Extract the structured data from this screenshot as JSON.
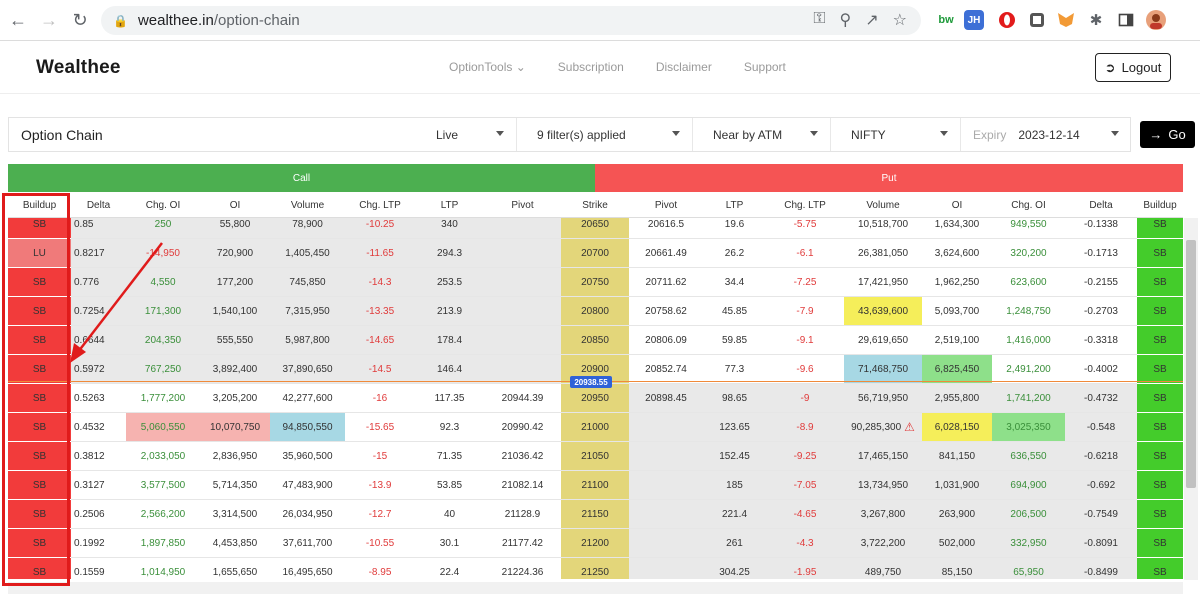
{
  "browser": {
    "url_domain": "wealthee.in",
    "url_path": "/option-chain",
    "extensions": [
      "bw",
      "JH"
    ]
  },
  "site": {
    "logo": "Wealthee",
    "menu": [
      "OptionTools",
      "Subscription",
      "Disclaimer",
      "Support"
    ],
    "logout": "Logout"
  },
  "filters": {
    "title": "Option Chain",
    "mode": "Live",
    "filters_applied": "9 filter(s) applied",
    "range": "Near by ATM",
    "symbol": "NIFTY",
    "expiry_label": "Expiry",
    "expiry": "2023-12-14",
    "go": "Go"
  },
  "table": {
    "call_label": "Call",
    "put_label": "Put",
    "spot_marker": "20938.55",
    "headers": [
      "Buildup",
      "Delta",
      "Chg. OI",
      "OI",
      "Volume",
      "Chg. LTP",
      "LTP",
      "Pivot",
      "Strike",
      "Pivot",
      "LTP",
      "Chg. LTP",
      "Volume",
      "OI",
      "Chg. OI",
      "Delta",
      "Buildup"
    ],
    "rows": [
      [
        "SB",
        "0.85",
        "250",
        "55,800",
        "78,900",
        "-10.25",
        "340",
        "",
        "20650",
        "20616.5",
        "19.6",
        "-5.75",
        "10,518,700",
        "1,634,300",
        "949,550",
        "-0.1338",
        "SB"
      ],
      [
        "LU",
        "0.8217",
        "-14,950",
        "720,900",
        "1,405,450",
        "-11.65",
        "294.3",
        "",
        "20700",
        "20661.49",
        "26.2",
        "-6.1",
        "26,381,050",
        "3,624,600",
        "320,200",
        "-0.1713",
        "SB"
      ],
      [
        "SB",
        "0.776",
        "4,550",
        "177,200",
        "745,850",
        "-14.3",
        "253.5",
        "",
        "20750",
        "20711.62",
        "34.4",
        "-7.25",
        "17,421,950",
        "1,962,250",
        "623,600",
        "-0.2155",
        "SB"
      ],
      [
        "SB",
        "0.7254",
        "171,300",
        "1,540,100",
        "7,315,950",
        "-13.35",
        "213.9",
        "",
        "20800",
        "20758.62",
        "45.85",
        "-7.9",
        "43,639,600",
        "5,093,700",
        "1,248,750",
        "-0.2703",
        "SB"
      ],
      [
        "SB",
        "0.6644",
        "204,350",
        "555,550",
        "5,987,800",
        "-14.65",
        "178.4",
        "",
        "20850",
        "20806.09",
        "59.85",
        "-9.1",
        "29,619,650",
        "2,519,100",
        "1,416,000",
        "-0.3318",
        "SB"
      ],
      [
        "SB",
        "0.5972",
        "767,250",
        "3,892,400",
        "37,890,650",
        "-14.5",
        "146.4",
        "",
        "20900",
        "20852.74",
        "77.3",
        "-9.6",
        "71,468,750",
        "6,825,450",
        "2,491,200",
        "-0.4002",
        "SB"
      ],
      [
        "SB",
        "0.5263",
        "1,777,200",
        "3,205,200",
        "42,277,600",
        "-16",
        "117.35",
        "20944.39",
        "20950",
        "20898.45",
        "98.65",
        "-9",
        "56,719,950",
        "2,955,800",
        "1,741,200",
        "-0.4732",
        "SB"
      ],
      [
        "SB",
        "0.4532",
        "5,060,550",
        "10,070,750",
        "94,850,550",
        "-15.65",
        "92.3",
        "20990.42",
        "21000",
        "",
        "123.65",
        "-8.9",
        "90,285,300",
        "6,028,150",
        "3,025,350",
        "-0.548",
        "SB"
      ],
      [
        "SB",
        "0.3812",
        "2,033,050",
        "2,836,950",
        "35,960,500",
        "-15",
        "71.35",
        "21036.42",
        "21050",
        "",
        "152.45",
        "-9.25",
        "17,465,150",
        "841,150",
        "636,550",
        "-0.6218",
        "SB"
      ],
      [
        "SB",
        "0.3127",
        "3,577,500",
        "5,714,350",
        "47,483,900",
        "-13.9",
        "53.85",
        "21082.14",
        "21100",
        "",
        "185",
        "-7.05",
        "13,734,950",
        "1,031,900",
        "694,900",
        "-0.692",
        "SB"
      ],
      [
        "SB",
        "0.2506",
        "2,566,200",
        "3,314,500",
        "26,034,950",
        "-12.7",
        "40",
        "21128.9",
        "21150",
        "",
        "221.4",
        "-4.65",
        "3,267,800",
        "263,900",
        "206,500",
        "-0.7549",
        "SB"
      ],
      [
        "SB",
        "0.1992",
        "1,897,850",
        "4,453,850",
        "37,611,700",
        "-10.55",
        "30.1",
        "21177.42",
        "21200",
        "",
        "261",
        "-4.3",
        "3,722,200",
        "502,000",
        "332,950",
        "-0.8091",
        "SB"
      ],
      [
        "SB",
        "0.1559",
        "1,014,950",
        "1,655,650",
        "16,495,650",
        "-8.95",
        "22.4",
        "21224.36",
        "21250",
        "",
        "304.25",
        "-1.95",
        "489,750",
        "85,150",
        "65,950",
        "-0.8499",
        "SB"
      ]
    ]
  },
  "colors": {
    "call": "#4caf50",
    "put": "#f55454",
    "sb_call": "#f23b3b",
    "lu": "#f07a7a",
    "sb_put": "#44cc2b",
    "strike": "#e3d67a",
    "itm_call": "#e9e9e9",
    "highlight_yellow": "#f5ee5a",
    "highlight_blue": "#a7d8e4",
    "highlight_green": "#8ee08a",
    "highlight_pink": "#f6b3b0",
    "annotation": "#e01b1b"
  },
  "icons": [
    "back-icon",
    "forward-icon",
    "reload-icon",
    "lock-icon",
    "key-icon",
    "zoom-icon",
    "share-icon",
    "star-icon",
    "puzzle-icon",
    "sidebar-icon",
    "logout-icon",
    "caret-down-icon",
    "arrow-right-icon",
    "warning-icon"
  ]
}
